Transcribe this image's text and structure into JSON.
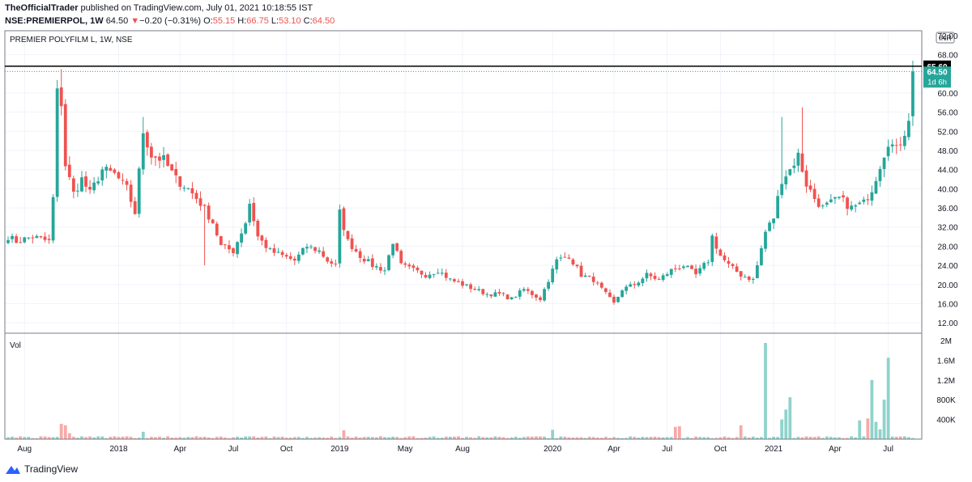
{
  "header": {
    "line1_author": "TheOfficialTrader",
    "line1_rest": "published on TradingView.com, July 01, 2021 10:18:55 IST",
    "symbol": "NSE:PREMIERPOL, 1W",
    "last": "64.50",
    "change_arrow": "▼",
    "change": "−0.20 (−0.31%)",
    "o_label": "O:",
    "o_val": "55.15",
    "h_label": "H:",
    "h_val": "66.75",
    "l_label": "L:",
    "l_val": "53.10",
    "c_label": "C:",
    "c_val": "64.50"
  },
  "footer": {
    "brand": "TradingView"
  },
  "colors": {
    "up": "#26a69a",
    "down": "#ef5350",
    "up_vol": "#8fd3cb",
    "down_vol": "#f7a9a7",
    "grid": "#f0f3fa",
    "axis": "#787b86"
  },
  "chart_data": {
    "type": "candlestick",
    "title": "PREMIER POLYFILM L, 1W, NSE",
    "currency": "INR",
    "price_ylim": [
      10,
      73
    ],
    "price_ticks": [
      "72.00",
      "68.00",
      "60.00",
      "56.00",
      "52.00",
      "48.00",
      "44.00",
      "40.00",
      "36.00",
      "32.00",
      "28.00",
      "24.00",
      "20.00",
      "16.00",
      "12.00"
    ],
    "x_labels": [
      "Aug",
      "2018",
      "Apr",
      "Jul",
      "Oct",
      "2019",
      "May",
      "Aug",
      "2020",
      "Apr",
      "Jul",
      "Oct",
      "2021",
      "Apr",
      "Jul"
    ],
    "x_label_bars": [
      4,
      27,
      42,
      55,
      68,
      81,
      97,
      111,
      133,
      148,
      161,
      174,
      187,
      202,
      215
    ],
    "markers": [
      {
        "label": "65.60",
        "value": 65.6,
        "kind": "horizontal-line"
      },
      {
        "label": "64.50",
        "value": 64.5,
        "kind": "last-price"
      },
      {
        "label": "1d 6h",
        "kind": "countdown"
      }
    ],
    "volume_label": "Vol",
    "volume_ylim": [
      0,
      2000000
    ],
    "volume_ticks": [
      "2M",
      "1.6M",
      "1.2M",
      "800K",
      "400K"
    ],
    "anchors": [
      [
        0,
        30
      ],
      [
        2,
        29
      ],
      [
        6,
        30
      ],
      [
        10,
        29
      ],
      [
        11,
        38
      ],
      [
        12,
        60
      ],
      [
        13,
        58
      ],
      [
        14,
        45
      ],
      [
        16,
        39
      ],
      [
        18,
        42
      ],
      [
        20,
        39
      ],
      [
        23,
        44
      ],
      [
        26,
        43
      ],
      [
        29,
        40
      ],
      [
        31,
        35
      ],
      [
        33,
        52
      ],
      [
        35,
        47
      ],
      [
        38,
        46
      ],
      [
        41,
        42
      ],
      [
        44,
        40
      ],
      [
        47,
        37
      ],
      [
        50,
        33
      ],
      [
        52,
        28
      ],
      [
        55,
        27
      ],
      [
        58,
        33
      ],
      [
        59,
        37
      ],
      [
        61,
        30
      ],
      [
        64,
        27
      ],
      [
        67,
        26
      ],
      [
        70,
        25
      ],
      [
        73,
        28
      ],
      [
        76,
        27
      ],
      [
        78,
        25
      ],
      [
        80,
        24
      ],
      [
        81,
        35
      ],
      [
        83,
        29
      ],
      [
        86,
        26
      ],
      [
        89,
        24
      ],
      [
        92,
        23
      ],
      [
        94,
        29
      ],
      [
        96,
        24
      ],
      [
        99,
        23
      ],
      [
        102,
        22
      ],
      [
        105,
        23
      ],
      [
        108,
        21
      ],
      [
        111,
        20
      ],
      [
        114,
        19
      ],
      [
        117,
        18
      ],
      [
        120,
        18
      ],
      [
        123,
        17
      ],
      [
        126,
        19
      ],
      [
        130,
        17
      ],
      [
        134,
        25
      ],
      [
        137,
        26
      ],
      [
        140,
        22
      ],
      [
        143,
        21
      ],
      [
        146,
        18
      ],
      [
        148,
        16
      ],
      [
        150,
        19
      ],
      [
        153,
        20
      ],
      [
        156,
        22
      ],
      [
        159,
        21
      ],
      [
        162,
        23
      ],
      [
        165,
        24
      ],
      [
        168,
        22
      ],
      [
        171,
        25
      ],
      [
        172,
        30
      ],
      [
        174,
        26
      ],
      [
        176,
        24
      ],
      [
        179,
        22
      ],
      [
        182,
        21
      ],
      [
        183,
        24
      ],
      [
        185,
        31
      ],
      [
        187,
        34
      ],
      [
        189,
        42
      ],
      [
        191,
        44
      ],
      [
        193,
        47
      ],
      [
        195,
        41
      ],
      [
        197,
        38
      ],
      [
        199,
        36
      ],
      [
        203,
        38
      ],
      [
        206,
        36
      ],
      [
        209,
        37
      ],
      [
        211,
        40
      ],
      [
        213,
        45
      ],
      [
        215,
        50
      ],
      [
        217,
        48
      ],
      [
        219,
        52
      ],
      [
        220,
        55
      ],
      [
        221,
        64.5
      ]
    ],
    "bars": 222,
    "spikes": [
      [
        13,
        "high",
        65
      ],
      [
        33,
        "high",
        55
      ],
      [
        48,
        "low",
        24
      ],
      [
        189,
        "high",
        55
      ],
      [
        194,
        "high",
        57
      ],
      [
        221,
        "high",
        66.75
      ],
      [
        221,
        "low",
        53.1
      ]
    ],
    "big_volumes": [
      [
        13,
        310000
      ],
      [
        14,
        280000
      ],
      [
        15,
        120000
      ],
      [
        33,
        150000
      ],
      [
        82,
        180000
      ],
      [
        133,
        190000
      ],
      [
        163,
        250000
      ],
      [
        164,
        260000
      ],
      [
        179,
        280000
      ],
      [
        185,
        1950000
      ],
      [
        189,
        400000
      ],
      [
        190,
        600000
      ],
      [
        191,
        850000
      ],
      [
        208,
        380000
      ],
      [
        210,
        420000
      ],
      [
        211,
        1200000
      ],
      [
        212,
        350000
      ],
      [
        213,
        200000
      ],
      [
        214,
        800000
      ],
      [
        215,
        1650000
      ]
    ]
  }
}
